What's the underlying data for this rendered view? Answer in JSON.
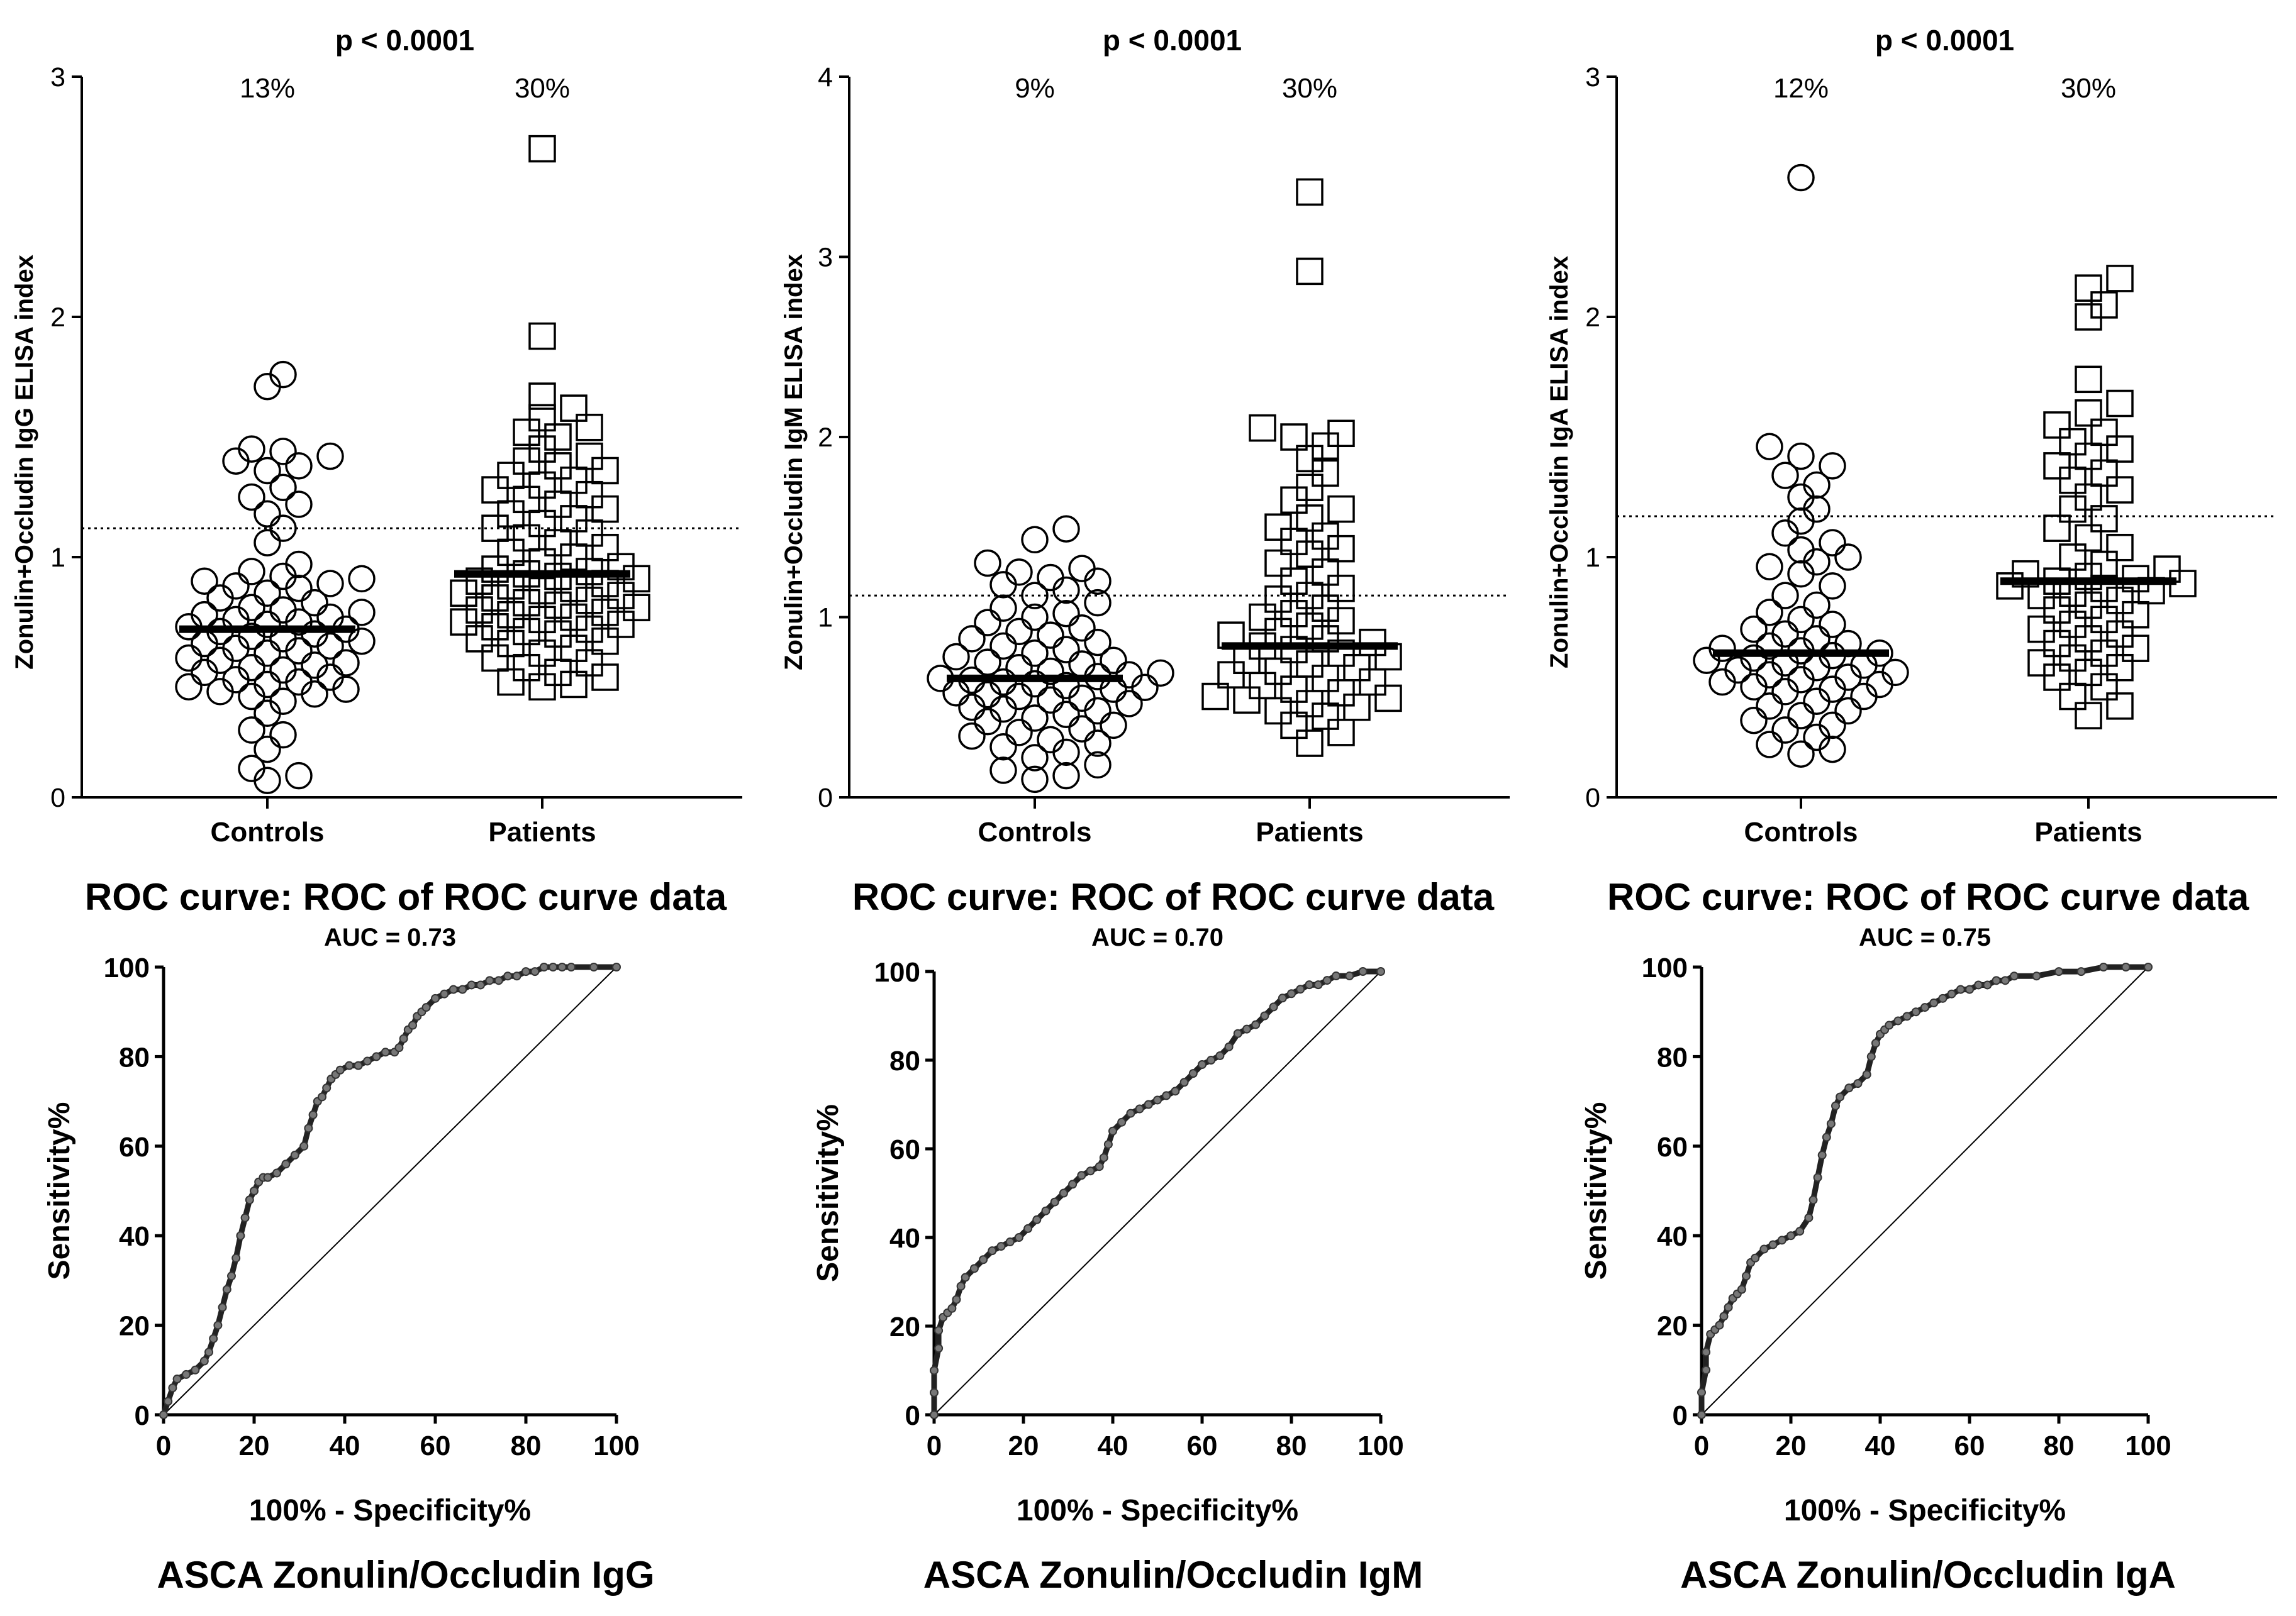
{
  "chart_data": [
    {
      "type": "scatter",
      "kind": "dot-plot",
      "title": "p < 0.0001",
      "ylabel": "Zonulin+Occludin IgG ELISA index",
      "ylim": [
        0,
        3
      ],
      "yticks": [
        "0",
        "1",
        "2",
        "3"
      ],
      "cutoff": 1.12,
      "categories": [
        "Controls",
        "Patients"
      ],
      "percent_labels": [
        "13%",
        "30%"
      ],
      "medians": [
        0.7,
        0.93
      ],
      "series": [
        {
          "name": "Controls",
          "marker": "circle",
          "values": [
            1.76,
            1.71,
            1.45,
            1.44,
            1.42,
            1.4,
            1.38,
            1.36,
            1.29,
            1.25,
            1.22,
            1.18,
            1.12,
            1.06,
            0.97,
            0.94,
            0.92,
            0.91,
            0.9,
            0.89,
            0.88,
            0.87,
            0.85,
            0.83,
            0.81,
            0.79,
            0.78,
            0.77,
            0.76,
            0.75,
            0.74,
            0.73,
            0.72,
            0.71,
            0.7,
            0.69,
            0.68,
            0.67,
            0.66,
            0.65,
            0.64,
            0.63,
            0.62,
            0.61,
            0.6,
            0.58,
            0.57,
            0.56,
            0.55,
            0.54,
            0.53,
            0.52,
            0.5,
            0.49,
            0.48,
            0.47,
            0.46,
            0.45,
            0.44,
            0.43,
            0.42,
            0.4,
            0.35,
            0.28,
            0.26,
            0.2,
            0.12,
            0.09,
            0.07
          ]
        },
        {
          "name": "Patients",
          "marker": "square",
          "values": [
            2.7,
            1.92,
            1.67,
            1.62,
            1.58,
            1.54,
            1.52,
            1.5,
            1.45,
            1.42,
            1.4,
            1.38,
            1.36,
            1.34,
            1.32,
            1.3,
            1.28,
            1.26,
            1.24,
            1.22,
            1.2,
            1.18,
            1.16,
            1.14,
            1.12,
            1.1,
            1.08,
            1.06,
            1.04,
            1.02,
            1.0,
            0.98,
            0.96,
            0.95,
            0.94,
            0.93,
            0.92,
            0.91,
            0.9,
            0.89,
            0.88,
            0.87,
            0.86,
            0.85,
            0.84,
            0.83,
            0.82,
            0.81,
            0.8,
            0.79,
            0.78,
            0.77,
            0.76,
            0.75,
            0.74,
            0.73,
            0.72,
            0.71,
            0.7,
            0.69,
            0.68,
            0.66,
            0.65,
            0.64,
            0.62,
            0.6,
            0.58,
            0.56,
            0.54,
            0.52,
            0.5,
            0.48,
            0.47,
            0.46
          ]
        }
      ]
    },
    {
      "type": "scatter",
      "kind": "dot-plot",
      "title": "p < 0.0001",
      "ylabel": "Zonulin+Occludin IgM ELISA index",
      "ylim": [
        0,
        4
      ],
      "yticks": [
        "0",
        "1",
        "2",
        "3",
        "4"
      ],
      "cutoff": 1.12,
      "categories": [
        "Controls",
        "Patients"
      ],
      "percent_labels": [
        "9%",
        "30%"
      ],
      "medians": [
        0.66,
        0.84
      ],
      "series": [
        {
          "name": "Controls",
          "marker": "circle",
          "values": [
            1.49,
            1.43,
            1.3,
            1.27,
            1.25,
            1.22,
            1.2,
            1.18,
            1.15,
            1.12,
            1.08,
            1.05,
            1.02,
            1.0,
            0.97,
            0.94,
            0.92,
            0.9,
            0.88,
            0.86,
            0.84,
            0.82,
            0.8,
            0.78,
            0.76,
            0.75,
            0.74,
            0.72,
            0.7,
            0.69,
            0.68,
            0.67,
            0.66,
            0.65,
            0.64,
            0.63,
            0.62,
            0.61,
            0.6,
            0.58,
            0.57,
            0.56,
            0.55,
            0.54,
            0.52,
            0.5,
            0.49,
            0.48,
            0.46,
            0.44,
            0.42,
            0.4,
            0.38,
            0.36,
            0.34,
            0.32,
            0.3,
            0.28,
            0.25,
            0.22,
            0.18,
            0.15,
            0.12,
            0.1
          ]
        },
        {
          "name": "Patients",
          "marker": "square",
          "values": [
            3.36,
            2.92,
            2.05,
            2.02,
            2.0,
            1.95,
            1.88,
            1.8,
            1.72,
            1.65,
            1.6,
            1.55,
            1.5,
            1.45,
            1.42,
            1.38,
            1.35,
            1.3,
            1.25,
            1.2,
            1.16,
            1.12,
            1.1,
            1.05,
            1.02,
            1.0,
            0.98,
            0.95,
            0.92,
            0.9,
            0.88,
            0.86,
            0.84,
            0.82,
            0.8,
            0.78,
            0.76,
            0.74,
            0.72,
            0.7,
            0.68,
            0.66,
            0.64,
            0.62,
            0.6,
            0.58,
            0.56,
            0.55,
            0.54,
            0.52,
            0.5,
            0.48,
            0.45,
            0.4,
            0.36,
            0.3
          ]
        }
      ]
    },
    {
      "type": "scatter",
      "kind": "dot-plot",
      "title": "p < 0.0001",
      "ylabel": "Zonulin+Occludin IgA ELISA index",
      "ylim": [
        0,
        3
      ],
      "yticks": [
        "0",
        "1",
        "2",
        "3"
      ],
      "cutoff": 1.17,
      "categories": [
        "Controls",
        "Patients"
      ],
      "percent_labels": [
        "12%",
        "30%"
      ],
      "medians": [
        0.6,
        0.9
      ],
      "series": [
        {
          "name": "Controls",
          "marker": "circle",
          "values": [
            2.58,
            1.46,
            1.42,
            1.38,
            1.34,
            1.3,
            1.25,
            1.2,
            1.15,
            1.1,
            1.06,
            1.03,
            1.0,
            0.98,
            0.96,
            0.93,
            0.88,
            0.84,
            0.8,
            0.77,
            0.74,
            0.72,
            0.7,
            0.68,
            0.66,
            0.64,
            0.63,
            0.62,
            0.61,
            0.6,
            0.59,
            0.58,
            0.57,
            0.56,
            0.55,
            0.54,
            0.53,
            0.52,
            0.51,
            0.5,
            0.49,
            0.48,
            0.47,
            0.46,
            0.45,
            0.44,
            0.42,
            0.4,
            0.38,
            0.36,
            0.34,
            0.32,
            0.3,
            0.28,
            0.25,
            0.22,
            0.2,
            0.18
          ]
        },
        {
          "name": "Patients",
          "marker": "square",
          "values": [
            2.16,
            2.12,
            2.05,
            2.0,
            1.74,
            1.64,
            1.6,
            1.55,
            1.52,
            1.48,
            1.45,
            1.42,
            1.38,
            1.35,
            1.32,
            1.28,
            1.25,
            1.2,
            1.16,
            1.12,
            1.08,
            1.04,
            1.0,
            0.97,
            0.95,
            0.93,
            0.92,
            0.91,
            0.9,
            0.89,
            0.88,
            0.87,
            0.86,
            0.85,
            0.84,
            0.82,
            0.8,
            0.78,
            0.76,
            0.74,
            0.72,
            0.7,
            0.68,
            0.66,
            0.64,
            0.62,
            0.6,
            0.58,
            0.56,
            0.54,
            0.52,
            0.5,
            0.46,
            0.42,
            0.38,
            0.34
          ]
        }
      ]
    },
    {
      "type": "line",
      "kind": "roc",
      "title": "ROC curve: ROC of ROC curve data",
      "subtitle": "AUC = 0.73",
      "xlabel": "100% - Specificity%",
      "ylabel": "Sensitivity%",
      "caption": "ASCA Zonulin/Occludin IgG",
      "xlim": [
        0,
        100
      ],
      "ylim": [
        0,
        100
      ],
      "xticks": [
        "0",
        "20",
        "40",
        "60",
        "80",
        "100"
      ],
      "yticks": [
        "0",
        "20",
        "40",
        "60",
        "80",
        "100"
      ],
      "x": [
        0,
        1,
        2,
        3,
        5,
        7,
        9,
        10,
        11,
        12,
        13,
        14,
        15,
        16,
        17,
        18,
        19,
        20,
        21,
        22,
        23,
        25,
        27,
        29,
        31,
        32,
        33,
        34,
        35,
        36,
        37,
        38,
        39,
        41,
        43,
        45,
        47,
        49,
        51,
        52,
        53,
        54,
        55,
        56,
        57,
        58,
        60,
        62,
        64,
        66,
        68,
        70,
        72,
        74,
        76,
        78,
        80,
        82,
        84,
        86,
        88,
        90,
        95,
        100
      ],
      "y": [
        0,
        3,
        6,
        8,
        9,
        10,
        12,
        14,
        17,
        20,
        24,
        28,
        31,
        35,
        40,
        44,
        48,
        50,
        52,
        53,
        53,
        54,
        56,
        58,
        60,
        64,
        67,
        70,
        71,
        73,
        75,
        76,
        77,
        78,
        78,
        79,
        80,
        81,
        81,
        82,
        84,
        86,
        87,
        89,
        90,
        91,
        93,
        94,
        95,
        95,
        96,
        96,
        97,
        97,
        98,
        98,
        99,
        99,
        100,
        100,
        100,
        100,
        100,
        100
      ]
    },
    {
      "type": "line",
      "kind": "roc",
      "title": "ROC curve: ROC of ROC curve data",
      "subtitle": "AUC = 0.70",
      "xlabel": "100% - Specificity%",
      "ylabel": "Sensitivity%",
      "caption": "ASCA Zonulin/Occludin IgM",
      "xlim": [
        0,
        100
      ],
      "ylim": [
        0,
        100
      ],
      "xticks": [
        "0",
        "20",
        "40",
        "60",
        "80",
        "100"
      ],
      "yticks": [
        "0",
        "20",
        "40",
        "60",
        "80",
        "100"
      ],
      "x": [
        0,
        0,
        0,
        1,
        1,
        2,
        3,
        4,
        5,
        6,
        7,
        9,
        11,
        13,
        15,
        17,
        19,
        21,
        23,
        25,
        27,
        29,
        31,
        33,
        35,
        37,
        38,
        39,
        40,
        42,
        44,
        46,
        48,
        50,
        52,
        54,
        56,
        58,
        60,
        62,
        64,
        66,
        68,
        70,
        72,
        74,
        76,
        78,
        80,
        82,
        84,
        86,
        88,
        90,
        93,
        96,
        100
      ],
      "y": [
        0,
        5,
        10,
        15,
        19,
        22,
        23,
        24,
        26,
        29,
        31,
        33,
        35,
        37,
        38,
        39,
        40,
        42,
        44,
        46,
        48,
        50,
        52,
        54,
        55,
        56,
        58,
        61,
        64,
        66,
        68,
        69,
        70,
        71,
        72,
        73,
        75,
        77,
        79,
        80,
        81,
        83,
        86,
        87,
        88,
        90,
        92,
        94,
        95,
        96,
        97,
        97,
        98,
        99,
        99,
        100,
        100
      ]
    },
    {
      "type": "line",
      "kind": "roc",
      "title": "ROC curve: ROC of ROC curve data",
      "subtitle": "AUC = 0.75",
      "xlabel": "100% - Specificity%",
      "ylabel": "Sensitivity%",
      "caption": "ASCA Zonulin/Occludin IgA",
      "xlim": [
        0,
        100
      ],
      "ylim": [
        0,
        100
      ],
      "xticks": [
        "0",
        "20",
        "40",
        "60",
        "80",
        "100"
      ],
      "yticks": [
        "0",
        "20",
        "40",
        "60",
        "80",
        "100"
      ],
      "x": [
        0,
        0,
        1,
        1,
        2,
        3,
        4,
        5,
        6,
        7,
        8,
        9,
        10,
        11,
        12,
        14,
        16,
        18,
        20,
        22,
        24,
        25,
        26,
        27,
        28,
        29,
        30,
        31,
        33,
        35,
        37,
        38,
        39,
        40,
        41,
        42,
        44,
        46,
        48,
        50,
        52,
        54,
        56,
        58,
        60,
        62,
        64,
        66,
        68,
        70,
        75,
        80,
        85,
        90,
        95,
        100
      ],
      "y": [
        0,
        5,
        10,
        14,
        18,
        19,
        20,
        22,
        24,
        26,
        27,
        28,
        31,
        34,
        35,
        37,
        38,
        39,
        40,
        41,
        44,
        48,
        53,
        58,
        62,
        65,
        69,
        71,
        73,
        74,
        76,
        80,
        83,
        85,
        86,
        87,
        88,
        89,
        90,
        91,
        92,
        93,
        94,
        95,
        95,
        96,
        96,
        97,
        97,
        98,
        98,
        99,
        99,
        100,
        100,
        100
      ]
    }
  ]
}
